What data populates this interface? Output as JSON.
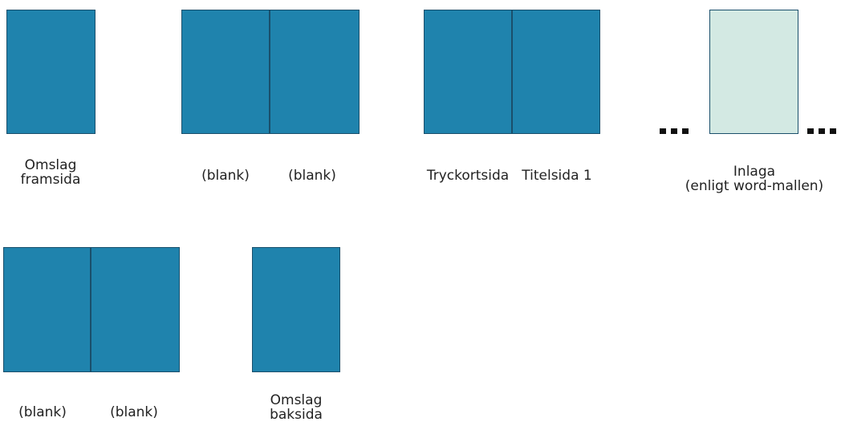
{
  "colors": {
    "page_blue": "#1f83ad",
    "insert_mint": "#d3e9e3"
  },
  "pages": {
    "cover_front": [
      "Omslag",
      "framsida"
    ],
    "spread1_left": "(blank)",
    "spread1_right": "(blank)",
    "imprint_page": "Tryckortsida",
    "title_page": "Titelsida 1",
    "insert": [
      "Inlaga",
      "(enligt word-mallen)"
    ],
    "spread2_left": "(blank)",
    "spread2_right": "(blank)",
    "cover_back": [
      "Omslag",
      "baksida"
    ]
  }
}
